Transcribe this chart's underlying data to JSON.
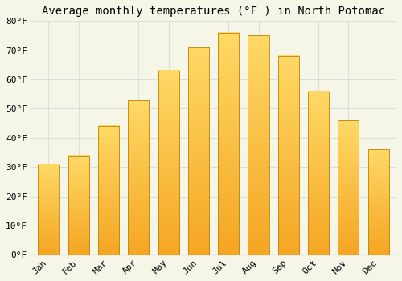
{
  "title": "Average monthly temperatures (°F ) in North Potomac",
  "months": [
    "Jan",
    "Feb",
    "Mar",
    "Apr",
    "May",
    "Jun",
    "Jul",
    "Aug",
    "Sep",
    "Oct",
    "Nov",
    "Dec"
  ],
  "values": [
    31,
    34,
    44,
    53,
    63,
    71,
    76,
    75,
    68,
    56,
    46,
    36
  ],
  "bar_color_bottom": "#F5A623",
  "bar_color_top": "#FFD966",
  "bar_edge_color": "#B8860B",
  "background_color": "#F5F5E8",
  "grid_color": "#DDDDDD",
  "ylim": [
    0,
    80
  ],
  "yticks": [
    0,
    10,
    20,
    30,
    40,
    50,
    60,
    70,
    80
  ],
  "title_fontsize": 10,
  "tick_fontsize": 8,
  "bar_width": 0.7
}
